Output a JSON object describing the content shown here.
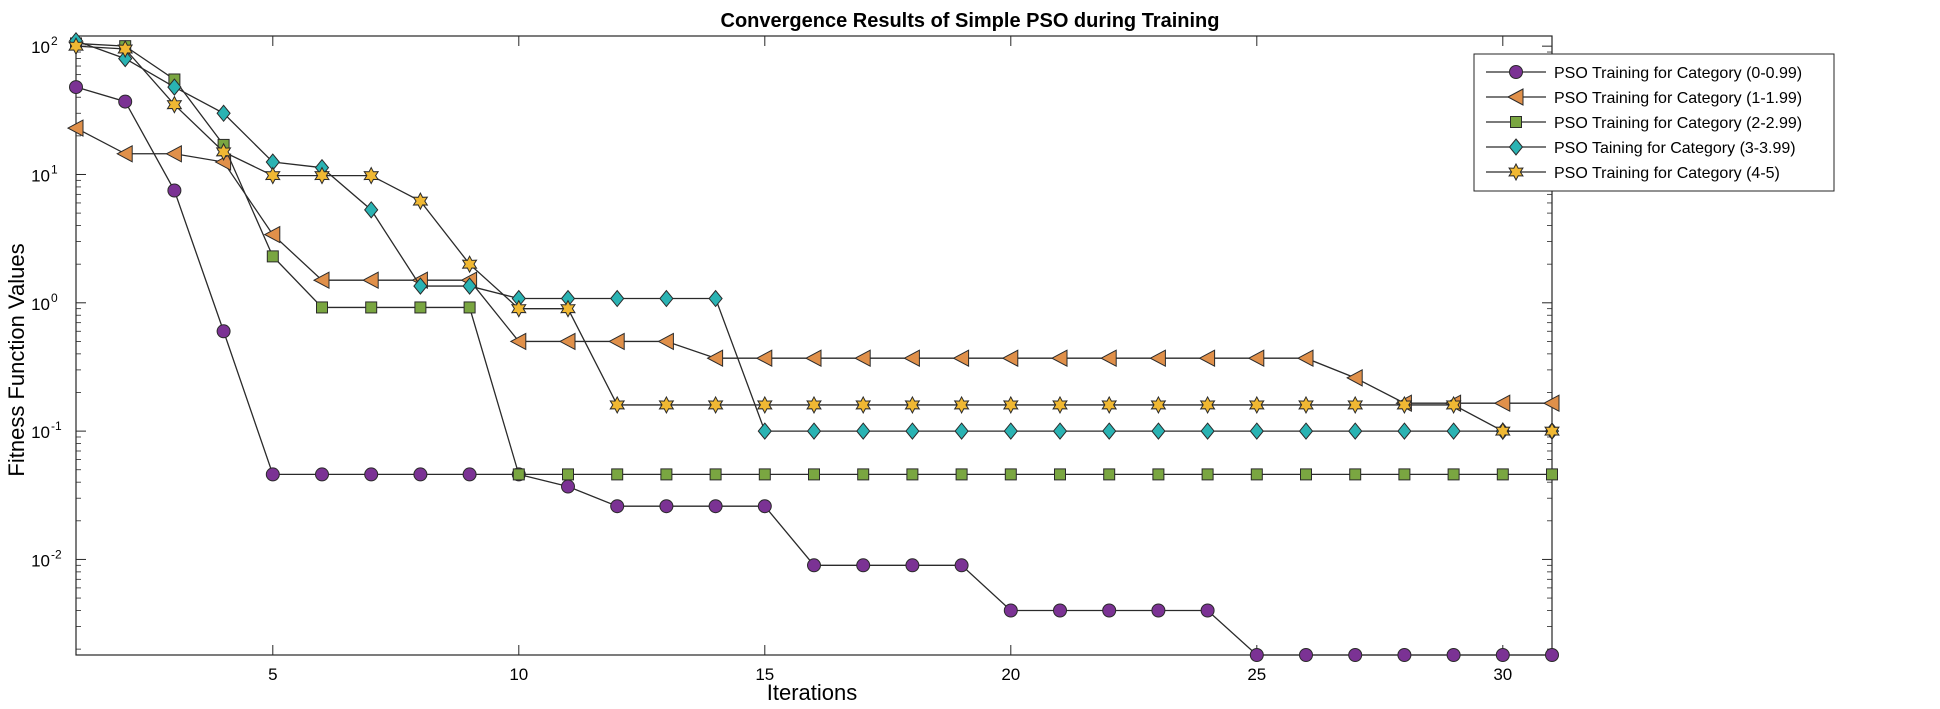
{
  "chart_data": {
    "type": "line",
    "title": "Convergence Results of Simple PSO during Training",
    "xlabel": "Iterations",
    "ylabel": "Fitness Function Values",
    "xlim": [
      1,
      31
    ],
    "ylim": [
      0.0018,
      120
    ],
    "yscale": "log",
    "grid": false,
    "legend_position": "top-right",
    "x_ticks": [
      5,
      10,
      15,
      20,
      25,
      30
    ],
    "x_tick_labels": [
      "5",
      "10",
      "15",
      "20",
      "25",
      "30"
    ],
    "y_ticks": [
      {
        "value": 0.01,
        "base": "10",
        "exp": "-2"
      },
      {
        "value": 0.1,
        "base": "10",
        "exp": "-1"
      },
      {
        "value": 1,
        "base": "10",
        "exp": "0"
      },
      {
        "value": 10,
        "base": "10",
        "exp": "1"
      },
      {
        "value": 100,
        "base": "10",
        "exp": "2"
      }
    ],
    "x": [
      1,
      2,
      3,
      4,
      5,
      6,
      7,
      8,
      9,
      10,
      11,
      12,
      13,
      14,
      15,
      16,
      17,
      18,
      19,
      20,
      21,
      22,
      23,
      24,
      25,
      26,
      27,
      28,
      29,
      30,
      31
    ],
    "series": [
      {
        "name": "PSO Training for Category (0-0.99)",
        "marker": "circle",
        "color": "#7b3294",
        "values": [
          48,
          37,
          7.5,
          0.6,
          0.046,
          0.046,
          0.046,
          0.046,
          0.046,
          0.046,
          0.037,
          0.026,
          0.026,
          0.026,
          0.026,
          0.009,
          0.009,
          0.009,
          0.009,
          0.004,
          0.004,
          0.004,
          0.004,
          0.004,
          0.0018,
          0.0018,
          0.0018,
          0.0018,
          0.0018,
          0.0018,
          0.0018
        ]
      },
      {
        "name": "PSO Training for Category (1-1.99)",
        "marker": "triangle-left",
        "color": "#e0904a",
        "values": [
          23,
          14.5,
          14.5,
          12.5,
          3.4,
          1.5,
          1.5,
          1.5,
          1.5,
          0.5,
          0.5,
          0.5,
          0.5,
          0.37,
          0.37,
          0.37,
          0.37,
          0.37,
          0.37,
          0.37,
          0.37,
          0.37,
          0.37,
          0.37,
          0.37,
          0.37,
          0.26,
          0.165,
          0.165,
          0.165,
          0.165
        ]
      },
      {
        "name": "PSO Training for Category (2-2.99)",
        "marker": "square",
        "color": "#7aa641",
        "values": [
          105,
          100,
          55,
          17,
          2.3,
          0.92,
          0.92,
          0.92,
          0.92,
          0.046,
          0.046,
          0.046,
          0.046,
          0.046,
          0.046,
          0.046,
          0.046,
          0.046,
          0.046,
          0.046,
          0.046,
          0.046,
          0.046,
          0.046,
          0.046,
          0.046,
          0.046,
          0.046,
          0.046,
          0.046,
          0.046
        ]
      },
      {
        "name": "PSO Taining for Category (3-3.99)",
        "marker": "diamond",
        "color": "#2ab3b3",
        "values": [
          110,
          80,
          48,
          30,
          12.5,
          11.3,
          5.3,
          1.35,
          1.35,
          1.08,
          1.08,
          1.08,
          1.08,
          1.08,
          0.1,
          0.1,
          0.1,
          0.1,
          0.1,
          0.1,
          0.1,
          0.1,
          0.1,
          0.1,
          0.1,
          0.1,
          0.1,
          0.1,
          0.1,
          0.1,
          0.1
        ]
      },
      {
        "name": "PSO Training for Category (4-5)",
        "marker": "hexagram",
        "color": "#f0b833",
        "values": [
          100,
          95,
          35,
          15,
          9.8,
          9.8,
          9.8,
          6.2,
          2.0,
          0.9,
          0.9,
          0.16,
          0.16,
          0.16,
          0.16,
          0.16,
          0.16,
          0.16,
          0.16,
          0.16,
          0.16,
          0.16,
          0.16,
          0.16,
          0.16,
          0.16,
          0.16,
          0.16,
          0.16,
          0.1,
          0.1
        ]
      }
    ]
  }
}
